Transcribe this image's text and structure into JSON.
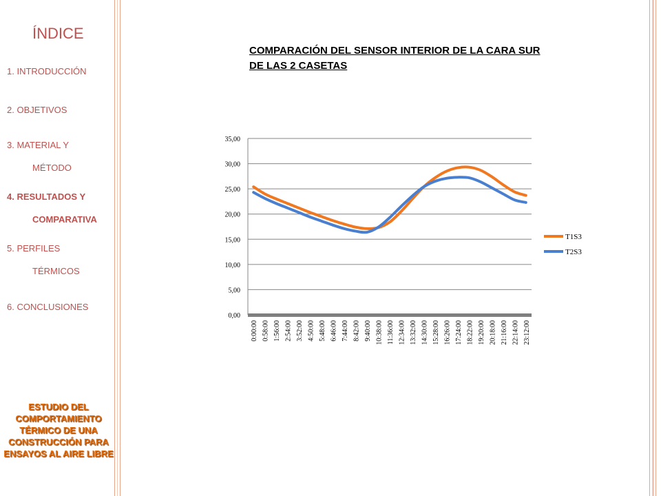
{
  "sidebar": {
    "heading": "ÍNDICE",
    "items": [
      {
        "l1": "1. INTRODUCCIÓN",
        "l2": ""
      },
      {
        "l1": "2. OBJETIVOS",
        "l2": ""
      },
      {
        "l1": "3. MATERIAL Y",
        "l2": "MÉTODO"
      },
      {
        "l1": "4. RESULTADOS  Y",
        "l2": "COMPARATIVA"
      },
      {
        "l1": "5. PERFILES",
        "l2": "TÉRMICOS"
      },
      {
        "l1": "6. CONCLUSIONES",
        "l2": ""
      }
    ],
    "footer": "ESTUDIO DEL COMPORTAMIENTO TÉRMICO DE UNA CONSTRUCCIÓN PARA ENSAYOS AL AIRE LIBRE"
  },
  "colors": {
    "accent": "#c0504d",
    "footer_orange": "#e46c0a",
    "series_t1s3": "#f07820",
    "series_t2s3": "#4a7fd0"
  },
  "slide": {
    "title": "COMPARACIÓN DEL SENSOR INTERIOR DE LA CARA SUR DE LAS 2 CASETAS"
  },
  "chart_data": {
    "type": "line",
    "title": "",
    "xlabel": "",
    "ylabel": "",
    "ylim": [
      0,
      35
    ],
    "yticks": [
      "0,00",
      "5,00",
      "10,00",
      "15,00",
      "20,00",
      "25,00",
      "30,00",
      "35,00"
    ],
    "categories": [
      "0:00:00",
      "0:58:00",
      "1:56:00",
      "2:54:00",
      "3:52:00",
      "4:50:00",
      "5:48:00",
      "6:46:00",
      "7:44:00",
      "8:42:00",
      "9:40:00",
      "10:38:00",
      "11:36:00",
      "12:34:00",
      "13:32:00",
      "14:30:00",
      "15:28:00",
      "16:26:00",
      "17:24:00",
      "18:22:00",
      "19:20:00",
      "20:18:00",
      "21:16:00",
      "22:14:00",
      "23:12:00"
    ],
    "grid": true,
    "legend": "right",
    "series": [
      {
        "name": "T1S3",
        "values": [
          25.4,
          24.0,
          23.0,
          22.1,
          21.2,
          20.3,
          19.5,
          18.7,
          18.0,
          17.4,
          17.1,
          17.3,
          18.4,
          20.5,
          23.0,
          25.4,
          27.2,
          28.5,
          29.2,
          29.3,
          28.7,
          27.4,
          25.8,
          24.4,
          23.7
        ]
      },
      {
        "name": "T2S3",
        "values": [
          24.3,
          23.1,
          22.1,
          21.2,
          20.3,
          19.4,
          18.6,
          17.8,
          17.1,
          16.6,
          16.4,
          17.4,
          19.3,
          21.5,
          23.6,
          25.4,
          26.5,
          27.1,
          27.3,
          27.2,
          26.4,
          25.2,
          24.0,
          22.8,
          22.3
        ]
      }
    ]
  }
}
